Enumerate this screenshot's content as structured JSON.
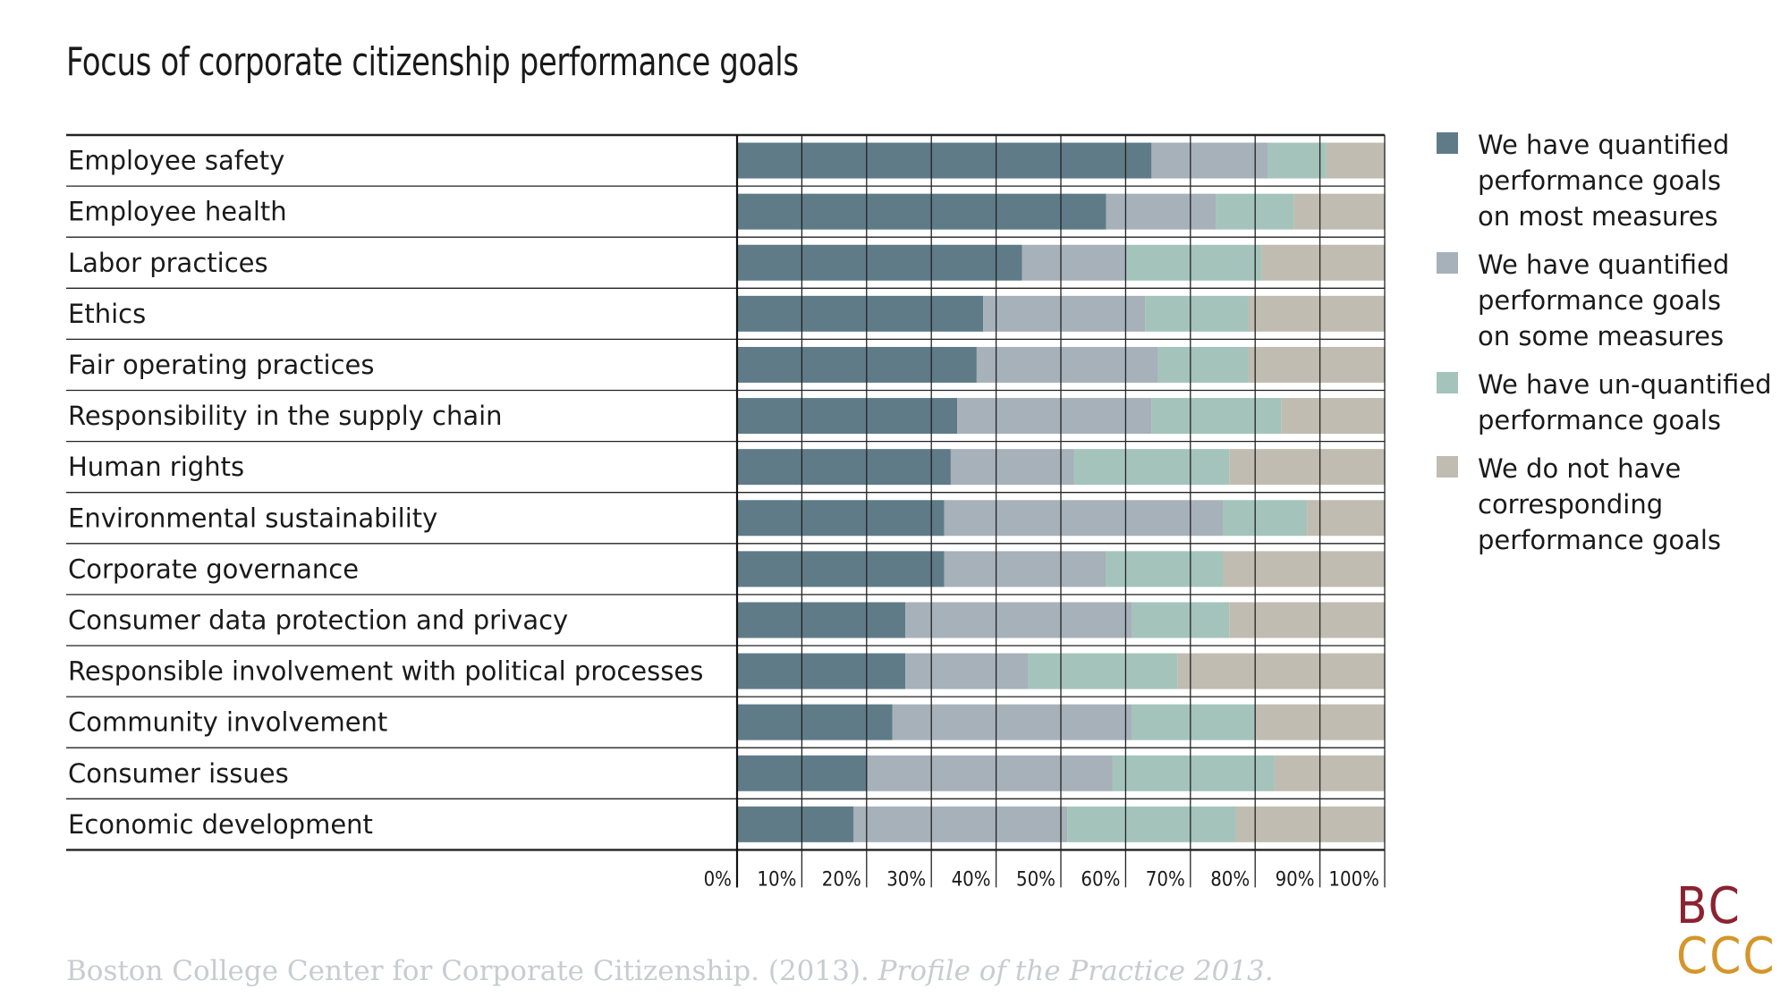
{
  "title": "Focus of corporate citizenship performance goals",
  "source": {
    "text": "Boston College Center for Corporate Citizenship. (2013). ",
    "italic": "Profile of the Practice 2013."
  },
  "logo": {
    "line1": "BC",
    "line2": "CCC"
  },
  "colors": {
    "most": "#5f7b88",
    "some": "#a7b1ba",
    "unquantified": "#a4c4bb",
    "none": "#c1bcb1"
  },
  "chart_data": {
    "type": "bar",
    "orientation": "horizontal",
    "stacked": true,
    "categories": [
      "Employee safety",
      "Employee health",
      "Labor practices",
      "Ethics",
      "Fair operating practices",
      "Responsibility in the supply chain",
      "Human rights",
      "Environmental sustainability",
      "Corporate governance",
      "Consumer data protection and privacy",
      "Responsible involvement with political processes",
      "Community involvement",
      "Consumer issues",
      "Economic development"
    ],
    "series": [
      {
        "name": "We have quantified\nperformance goals\non most measures",
        "color": "#5f7b88",
        "values": [
          64,
          57,
          44,
          38,
          37,
          34,
          33,
          32,
          32,
          26,
          26,
          24,
          20,
          18
        ]
      },
      {
        "name": "We have quantified\nperformance goals\non some measures",
        "color": "#a7b1ba",
        "values": [
          18,
          17,
          16,
          25,
          28,
          30,
          19,
          43,
          25,
          35,
          19,
          37,
          38,
          33
        ]
      },
      {
        "name": "We have un-quantified\nperformance goals",
        "color": "#a4c4bb",
        "values": [
          9,
          12,
          21,
          16,
          14,
          20,
          24,
          13,
          18,
          15,
          23,
          19,
          25,
          26
        ]
      },
      {
        "name": "We do not have\ncorresponding\nperformance goals",
        "color": "#c1bcb1",
        "values": [
          9,
          14,
          19,
          21,
          21,
          16,
          24,
          12,
          25,
          24,
          32,
          20,
          17,
          23
        ]
      }
    ],
    "x_ticks": [
      "0%",
      "10%",
      "20%",
      "30%",
      "40%",
      "50%",
      "60%",
      "70%",
      "80%",
      "90%",
      "100%"
    ],
    "xlim": [
      0,
      100
    ],
    "grid": true,
    "legend": "right"
  }
}
